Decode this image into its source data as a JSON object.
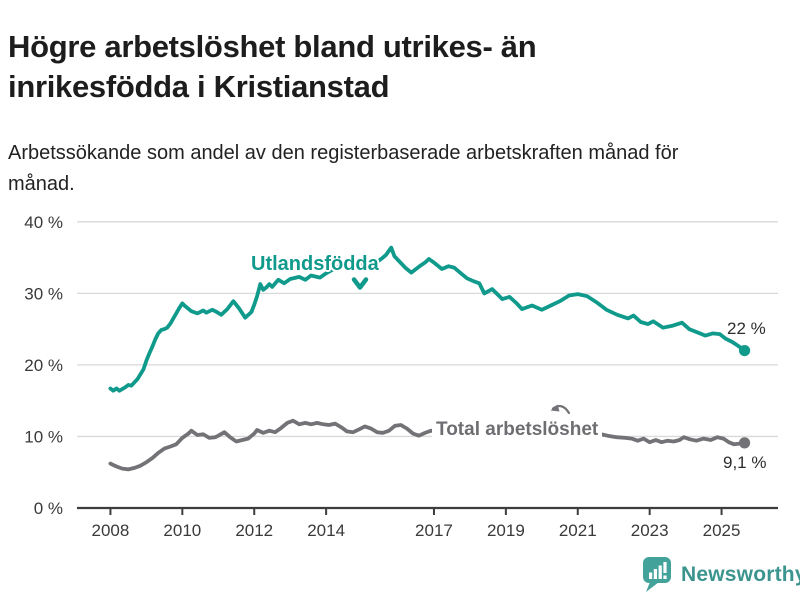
{
  "header": {
    "title": "Högre arbetslöshet bland utrikes- än inrikesfödda i Kristianstad",
    "subtitle": "Arbetssökande som andel av den registerbaserade arbetskraften månad för månad."
  },
  "chart_data": {
    "type": "line",
    "title": "Högre arbetslöshet bland utrikes- än inrikesfödda i Kristianstad",
    "grid": true,
    "legend_position": "inline-labels-on-chart",
    "x_axis": {
      "tick_labels": [
        "2008",
        "2010",
        "2012",
        "2014",
        "2017",
        "2019",
        "2021",
        "2023",
        "2025"
      ],
      "tick_years": [
        2008,
        2010,
        2012,
        2014,
        2017,
        2019,
        2021,
        2023,
        2025
      ],
      "range": [
        2007.07,
        2026.57
      ]
    },
    "y_axis": {
      "unit": "%",
      "tick_labels": [
        "0 %",
        "10 %",
        "20 %",
        "30 %",
        "40 %"
      ],
      "tick_values": [
        0,
        10,
        20,
        30,
        40
      ],
      "range": [
        0,
        42
      ]
    },
    "series": [
      {
        "name": "Utlandsfödda",
        "color": "#109a8c",
        "end_value": 22.0,
        "end_label": "22 %",
        "points": [
          [
            2008.0,
            16.7
          ],
          [
            2008.08,
            16.4
          ],
          [
            2008.17,
            16.7
          ],
          [
            2008.25,
            16.4
          ],
          [
            2008.42,
            16.9
          ],
          [
            2008.5,
            17.2
          ],
          [
            2008.58,
            17.1
          ],
          [
            2008.75,
            18.0
          ],
          [
            2008.92,
            19.4
          ],
          [
            2009.0,
            20.6
          ],
          [
            2009.08,
            21.6
          ],
          [
            2009.17,
            22.6
          ],
          [
            2009.25,
            23.6
          ],
          [
            2009.33,
            24.4
          ],
          [
            2009.42,
            24.9
          ],
          [
            2009.5,
            25.0
          ],
          [
            2009.58,
            25.2
          ],
          [
            2009.67,
            25.8
          ],
          [
            2009.75,
            26.5
          ],
          [
            2009.83,
            27.2
          ],
          [
            2009.92,
            28.0
          ],
          [
            2010.0,
            28.6
          ],
          [
            2010.08,
            28.2
          ],
          [
            2010.25,
            27.5
          ],
          [
            2010.42,
            27.2
          ],
          [
            2010.58,
            27.6
          ],
          [
            2010.67,
            27.3
          ],
          [
            2010.83,
            27.7
          ],
          [
            2010.92,
            27.5
          ],
          [
            2011.08,
            27.0
          ],
          [
            2011.25,
            27.8
          ],
          [
            2011.42,
            28.9
          ],
          [
            2011.58,
            27.9
          ],
          [
            2011.75,
            26.6
          ],
          [
            2011.92,
            27.4
          ],
          [
            2012.0,
            28.4
          ],
          [
            2012.08,
            29.6
          ],
          [
            2012.17,
            31.3
          ],
          [
            2012.25,
            30.5
          ],
          [
            2012.33,
            30.8
          ],
          [
            2012.42,
            31.3
          ],
          [
            2012.5,
            30.9
          ],
          [
            2012.67,
            31.9
          ],
          [
            2012.83,
            31.4
          ],
          [
            2013.0,
            32.0
          ],
          [
            2013.25,
            32.3
          ],
          [
            2013.42,
            31.9
          ],
          [
            2013.58,
            32.5
          ],
          [
            2013.83,
            32.2
          ],
          [
            2014.0,
            32.8
          ],
          [
            2014.25,
            33.5
          ],
          [
            2014.42,
            34.0
          ],
          [
            2014.5,
            33.7
          ],
          [
            2014.58,
            33.4
          ],
          [
            2014.75,
            33.9
          ],
          [
            2014.92,
            33.6
          ],
          [
            2015.08,
            34.3
          ],
          [
            2015.25,
            34.6
          ],
          [
            2015.42,
            34.4
          ],
          [
            2015.58,
            35.0
          ],
          [
            2015.67,
            35.4
          ],
          [
            2015.81,
            36.4
          ],
          [
            2015.9,
            35.2
          ],
          [
            2016.03,
            34.5
          ],
          [
            2016.2,
            33.6
          ],
          [
            2016.37,
            32.9
          ],
          [
            2016.6,
            33.8
          ],
          [
            2016.75,
            34.3
          ],
          [
            2016.86,
            34.8
          ],
          [
            2017.0,
            34.3
          ],
          [
            2017.22,
            33.4
          ],
          [
            2017.4,
            33.8
          ],
          [
            2017.56,
            33.6
          ],
          [
            2017.75,
            32.8
          ],
          [
            2017.92,
            32.1
          ],
          [
            2018.1,
            31.7
          ],
          [
            2018.26,
            31.4
          ],
          [
            2018.4,
            30.0
          ],
          [
            2018.62,
            30.6
          ],
          [
            2018.9,
            29.2
          ],
          [
            2019.1,
            29.5
          ],
          [
            2019.3,
            28.6
          ],
          [
            2019.45,
            27.8
          ],
          [
            2019.73,
            28.3
          ],
          [
            2020.0,
            27.7
          ],
          [
            2020.25,
            28.3
          ],
          [
            2020.5,
            28.9
          ],
          [
            2020.76,
            29.7
          ],
          [
            2021.0,
            29.9
          ],
          [
            2021.26,
            29.6
          ],
          [
            2021.54,
            28.7
          ],
          [
            2021.8,
            27.7
          ],
          [
            2022.1,
            27.0
          ],
          [
            2022.4,
            26.5
          ],
          [
            2022.55,
            26.9
          ],
          [
            2022.75,
            26.0
          ],
          [
            2022.95,
            25.7
          ],
          [
            2023.1,
            26.1
          ],
          [
            2023.37,
            25.2
          ],
          [
            2023.65,
            25.5
          ],
          [
            2023.9,
            25.9
          ],
          [
            2024.1,
            25.0
          ],
          [
            2024.35,
            24.5
          ],
          [
            2024.55,
            24.1
          ],
          [
            2024.75,
            24.4
          ],
          [
            2024.95,
            24.3
          ],
          [
            2025.1,
            23.7
          ],
          [
            2025.3,
            23.2
          ],
          [
            2025.45,
            22.7
          ],
          [
            2025.64,
            22.0
          ]
        ]
      },
      {
        "name": "Total arbetslöshet",
        "color": "#737377",
        "end_value": 9.1,
        "end_label": "9,1 %",
        "points": [
          [
            2008.0,
            6.2
          ],
          [
            2008.17,
            5.8
          ],
          [
            2008.33,
            5.5
          ],
          [
            2008.5,
            5.4
          ],
          [
            2008.67,
            5.6
          ],
          [
            2008.83,
            5.9
          ],
          [
            2009.0,
            6.4
          ],
          [
            2009.17,
            7.0
          ],
          [
            2009.33,
            7.7
          ],
          [
            2009.5,
            8.3
          ],
          [
            2009.67,
            8.6
          ],
          [
            2009.83,
            8.9
          ],
          [
            2010.0,
            9.8
          ],
          [
            2010.17,
            10.4
          ],
          [
            2010.25,
            10.8
          ],
          [
            2010.42,
            10.2
          ],
          [
            2010.58,
            10.3
          ],
          [
            2010.75,
            9.8
          ],
          [
            2010.92,
            9.9
          ],
          [
            2011.0,
            10.1
          ],
          [
            2011.17,
            10.6
          ],
          [
            2011.33,
            9.9
          ],
          [
            2011.5,
            9.3
          ],
          [
            2011.67,
            9.5
          ],
          [
            2011.83,
            9.7
          ],
          [
            2012.0,
            10.4
          ],
          [
            2012.08,
            10.9
          ],
          [
            2012.25,
            10.5
          ],
          [
            2012.42,
            10.8
          ],
          [
            2012.58,
            10.6
          ],
          [
            2012.75,
            11.2
          ],
          [
            2012.92,
            11.9
          ],
          [
            2013.08,
            12.2
          ],
          [
            2013.25,
            11.7
          ],
          [
            2013.42,
            11.9
          ],
          [
            2013.58,
            11.7
          ],
          [
            2013.75,
            11.9
          ],
          [
            2013.92,
            11.7
          ],
          [
            2014.08,
            11.6
          ],
          [
            2014.25,
            11.8
          ],
          [
            2014.42,
            11.3
          ],
          [
            2014.58,
            10.7
          ],
          [
            2014.75,
            10.6
          ],
          [
            2014.92,
            11.0
          ],
          [
            2015.08,
            11.4
          ],
          [
            2015.25,
            11.1
          ],
          [
            2015.42,
            10.6
          ],
          [
            2015.58,
            10.5
          ],
          [
            2015.75,
            10.8
          ],
          [
            2015.92,
            11.5
          ],
          [
            2016.08,
            11.6
          ],
          [
            2016.25,
            11.1
          ],
          [
            2016.42,
            10.4
          ],
          [
            2016.58,
            10.1
          ],
          [
            2016.75,
            10.5
          ],
          [
            2016.92,
            10.8
          ],
          [
            2017.08,
            10.7
          ],
          [
            2017.33,
            10.4
          ],
          [
            2017.58,
            10.2
          ],
          [
            2017.83,
            10.0
          ],
          [
            2018.08,
            9.9
          ],
          [
            2018.33,
            9.7
          ],
          [
            2018.58,
            9.6
          ],
          [
            2018.83,
            9.8
          ],
          [
            2019.08,
            9.9
          ],
          [
            2019.33,
            10.0
          ],
          [
            2019.58,
            10.2
          ],
          [
            2019.83,
            10.4
          ],
          [
            2020.08,
            10.9
          ],
          [
            2020.33,
            11.5
          ],
          [
            2020.58,
            11.8
          ],
          [
            2020.83,
            11.6
          ],
          [
            2021.08,
            11.2
          ],
          [
            2021.33,
            10.8
          ],
          [
            2021.58,
            10.4
          ],
          [
            2021.83,
            10.1
          ],
          [
            2022.08,
            9.9
          ],
          [
            2022.33,
            9.8
          ],
          [
            2022.5,
            9.7
          ],
          [
            2022.67,
            9.4
          ],
          [
            2022.83,
            9.7
          ],
          [
            2023.0,
            9.2
          ],
          [
            2023.17,
            9.5
          ],
          [
            2023.33,
            9.2
          ],
          [
            2023.5,
            9.4
          ],
          [
            2023.67,
            9.3
          ],
          [
            2023.83,
            9.5
          ],
          [
            2023.95,
            9.9
          ],
          [
            2024.12,
            9.6
          ],
          [
            2024.3,
            9.4
          ],
          [
            2024.5,
            9.7
          ],
          [
            2024.7,
            9.5
          ],
          [
            2024.88,
            9.9
          ],
          [
            2025.05,
            9.7
          ],
          [
            2025.2,
            9.2
          ],
          [
            2025.35,
            8.9
          ],
          [
            2025.5,
            9.0
          ],
          [
            2025.64,
            9.1
          ]
        ]
      }
    ]
  },
  "branding": {
    "name": "Newsworthy",
    "color": "#3b948e",
    "icon": "newsworthy-speech-bubble-bar-chart-icon"
  }
}
